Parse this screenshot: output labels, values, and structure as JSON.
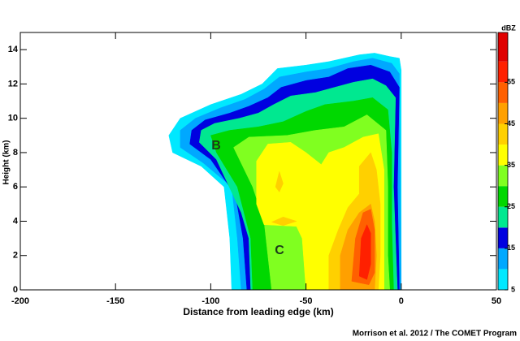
{
  "chart_data": {
    "type": "contour",
    "x_label": "Distance from leading edge (km)",
    "y_label": "Height (km)",
    "xlim": [
      -200,
      50
    ],
    "xticks": [
      -200,
      -150,
      -100,
      -50,
      0,
      50
    ],
    "ylim": [
      0,
      15
    ],
    "yticks": [
      0,
      2,
      4,
      6,
      8,
      10,
      12,
      14
    ],
    "colorbar_label": "dBZ",
    "clim": [
      5,
      67
    ],
    "colorbar_ticks": [
      5,
      15,
      25,
      35,
      45,
      55
    ],
    "levels": [
      5,
      10,
      15,
      20,
      25,
      30,
      35,
      40,
      45,
      50,
      55,
      60
    ],
    "level_colors": [
      "#00e8ff",
      "#00a8ff",
      "#0000e0",
      "#00e890",
      "#00d800",
      "#80ff20",
      "#ffff00",
      "#ffd000",
      "#ffa000",
      "#ff6000",
      "#ff2000",
      "#e00000"
    ],
    "contours": [
      {
        "level": 5,
        "points": [
          [
            -89,
            0
          ],
          [
            -90,
            3
          ],
          [
            -93,
            6
          ],
          [
            -105,
            7.2
          ],
          [
            -120,
            8
          ],
          [
            -122,
            9
          ],
          [
            -116,
            10
          ],
          [
            -100,
            10.8
          ],
          [
            -84,
            11.4
          ],
          [
            -73,
            12
          ],
          [
            -65,
            12.9
          ],
          [
            -50,
            13.1
          ],
          [
            -38,
            13.3
          ],
          [
            -22,
            13.7
          ],
          [
            -14,
            13.8
          ],
          [
            -6,
            13.6
          ],
          [
            -1,
            13.5
          ],
          [
            0,
            12.8
          ],
          [
            0,
            0
          ]
        ]
      },
      {
        "level": 10,
        "points": [
          [
            -84,
            0
          ],
          [
            -86,
            3
          ],
          [
            -89,
            6
          ],
          [
            -104,
            7.4
          ],
          [
            -116,
            8.3
          ],
          [
            -116,
            9.3
          ],
          [
            -108,
            10
          ],
          [
            -95,
            10.6
          ],
          [
            -82,
            11.1
          ],
          [
            -72,
            11.7
          ],
          [
            -64,
            12.4
          ],
          [
            -50,
            12.7
          ],
          [
            -38,
            12.9
          ],
          [
            -25,
            13.3
          ],
          [
            -15,
            13.5
          ],
          [
            -5,
            13.2
          ],
          [
            -1,
            12.6
          ],
          [
            0,
            0
          ]
        ]
      },
      {
        "level": 15,
        "points": [
          [
            -81,
            0
          ],
          [
            -83,
            3
          ],
          [
            -87,
            5.5
          ],
          [
            -100,
            7.6
          ],
          [
            -111,
            8.5
          ],
          [
            -110,
            9.3
          ],
          [
            -103,
            9.9
          ],
          [
            -90,
            10.3
          ],
          [
            -80,
            10.7
          ],
          [
            -70,
            11.2
          ],
          [
            -63,
            11.8
          ],
          [
            -50,
            12.2
          ],
          [
            -38,
            12.4
          ],
          [
            -28,
            12.9
          ],
          [
            -16,
            13.1
          ],
          [
            -6,
            12.7
          ],
          [
            -1,
            11.8
          ],
          [
            -2,
            6
          ],
          [
            -1,
            0
          ]
        ]
      },
      {
        "level": 20,
        "points": [
          [
            -79,
            0
          ],
          [
            -80,
            3
          ],
          [
            -84,
            4.5
          ],
          [
            -97,
            7.6
          ],
          [
            -106,
            8.6
          ],
          [
            -105,
            9.3
          ],
          [
            -98,
            9.7
          ],
          [
            -85,
            10
          ],
          [
            -75,
            10.3
          ],
          [
            -67,
            10.8
          ],
          [
            -58,
            11.3
          ],
          [
            -45,
            11.5
          ],
          [
            -35,
            11.8
          ],
          [
            -25,
            12.1
          ],
          [
            -15,
            12.3
          ],
          [
            -8,
            11.9
          ],
          [
            -3,
            11.2
          ],
          [
            -4,
            6
          ],
          [
            -2,
            0
          ]
        ]
      },
      {
        "level": 25,
        "points": [
          [
            -78,
            0
          ],
          [
            -79,
            3
          ],
          [
            -86,
            6
          ],
          [
            -97,
            8
          ],
          [
            -100,
            9
          ],
          [
            -90,
            9.3
          ],
          [
            -75,
            9.5
          ],
          [
            -62,
            9.8
          ],
          [
            -50,
            10.4
          ],
          [
            -40,
            10.8
          ],
          [
            -25,
            11
          ],
          [
            -15,
            11.2
          ],
          [
            -7,
            10.5
          ],
          [
            -5,
            8
          ],
          [
            -5,
            4
          ],
          [
            -4,
            0
          ]
        ]
      },
      {
        "level": 30,
        "points": [
          [
            -68,
            0
          ],
          [
            -70,
            2
          ],
          [
            -72,
            4
          ],
          [
            -78,
            6
          ],
          [
            -88,
            8.3
          ],
          [
            -80,
            8.9
          ],
          [
            -60,
            9
          ],
          [
            -45,
            9.3
          ],
          [
            -30,
            9.5
          ],
          [
            -18,
            10.2
          ],
          [
            -8,
            9.3
          ],
          [
            -7,
            6
          ],
          [
            -7,
            2
          ],
          [
            -6,
            0
          ]
        ]
      },
      {
        "level": 35,
        "points": [
          [
            -50,
            0
          ],
          [
            -52,
            3
          ],
          [
            -55,
            3.7
          ],
          [
            -72,
            3.8
          ],
          [
            -76,
            5
          ],
          [
            -76,
            7.5
          ],
          [
            -70,
            8.5
          ],
          [
            -58,
            8.6
          ],
          [
            -50,
            8
          ],
          [
            -42,
            7.3
          ],
          [
            -38,
            8
          ],
          [
            -30,
            8.3
          ],
          [
            -20,
            8.9
          ],
          [
            -12,
            9.1
          ],
          [
            -9,
            7
          ],
          [
            -9,
            3
          ],
          [
            -9,
            0
          ]
        ]
      },
      {
        "level": 40,
        "points": [
          [
            -38,
            0
          ],
          [
            -38,
            2
          ],
          [
            -33,
            3.5
          ],
          [
            -28,
            4.8
          ],
          [
            -22,
            5.6
          ],
          [
            -22,
            7.2
          ],
          [
            -16,
            8
          ],
          [
            -13,
            7
          ],
          [
            -11,
            5
          ],
          [
            -11,
            2
          ],
          [
            -12,
            0
          ]
        ]
      },
      {
        "level": 40,
        "points": [
          [
            -68,
            3.95
          ],
          [
            -62,
            4.25
          ],
          [
            -55,
            4.0
          ],
          [
            -62,
            3.75
          ]
        ]
      },
      {
        "level": 40,
        "points": [
          [
            -66,
            6
          ],
          [
            -64,
            6.9
          ],
          [
            -62,
            6.2
          ],
          [
            -64,
            5.7
          ]
        ]
      },
      {
        "level": 45,
        "points": [
          [
            -32,
            0
          ],
          [
            -32,
            2
          ],
          [
            -28,
            3.5
          ],
          [
            -22,
            4.5
          ],
          [
            -16,
            5
          ],
          [
            -14,
            4
          ],
          [
            -13,
            2
          ],
          [
            -14,
            0
          ]
        ]
      },
      {
        "level": 50,
        "points": [
          [
            -26,
            0.5
          ],
          [
            -24,
            3
          ],
          [
            -20,
            4.5
          ],
          [
            -16,
            4.7
          ],
          [
            -14,
            3.5
          ],
          [
            -14,
            1
          ],
          [
            -17,
            0.3
          ]
        ]
      },
      {
        "level": 55,
        "points": [
          [
            -22,
            0.8
          ],
          [
            -21,
            3
          ],
          [
            -18,
            3.8
          ],
          [
            -16,
            3.3
          ],
          [
            -16,
            1.5
          ],
          [
            -18,
            0.6
          ]
        ]
      }
    ],
    "annotations": [
      "B",
      "C"
    ],
    "credit": "Morrison et al. 2012 / The COMET Program"
  }
}
